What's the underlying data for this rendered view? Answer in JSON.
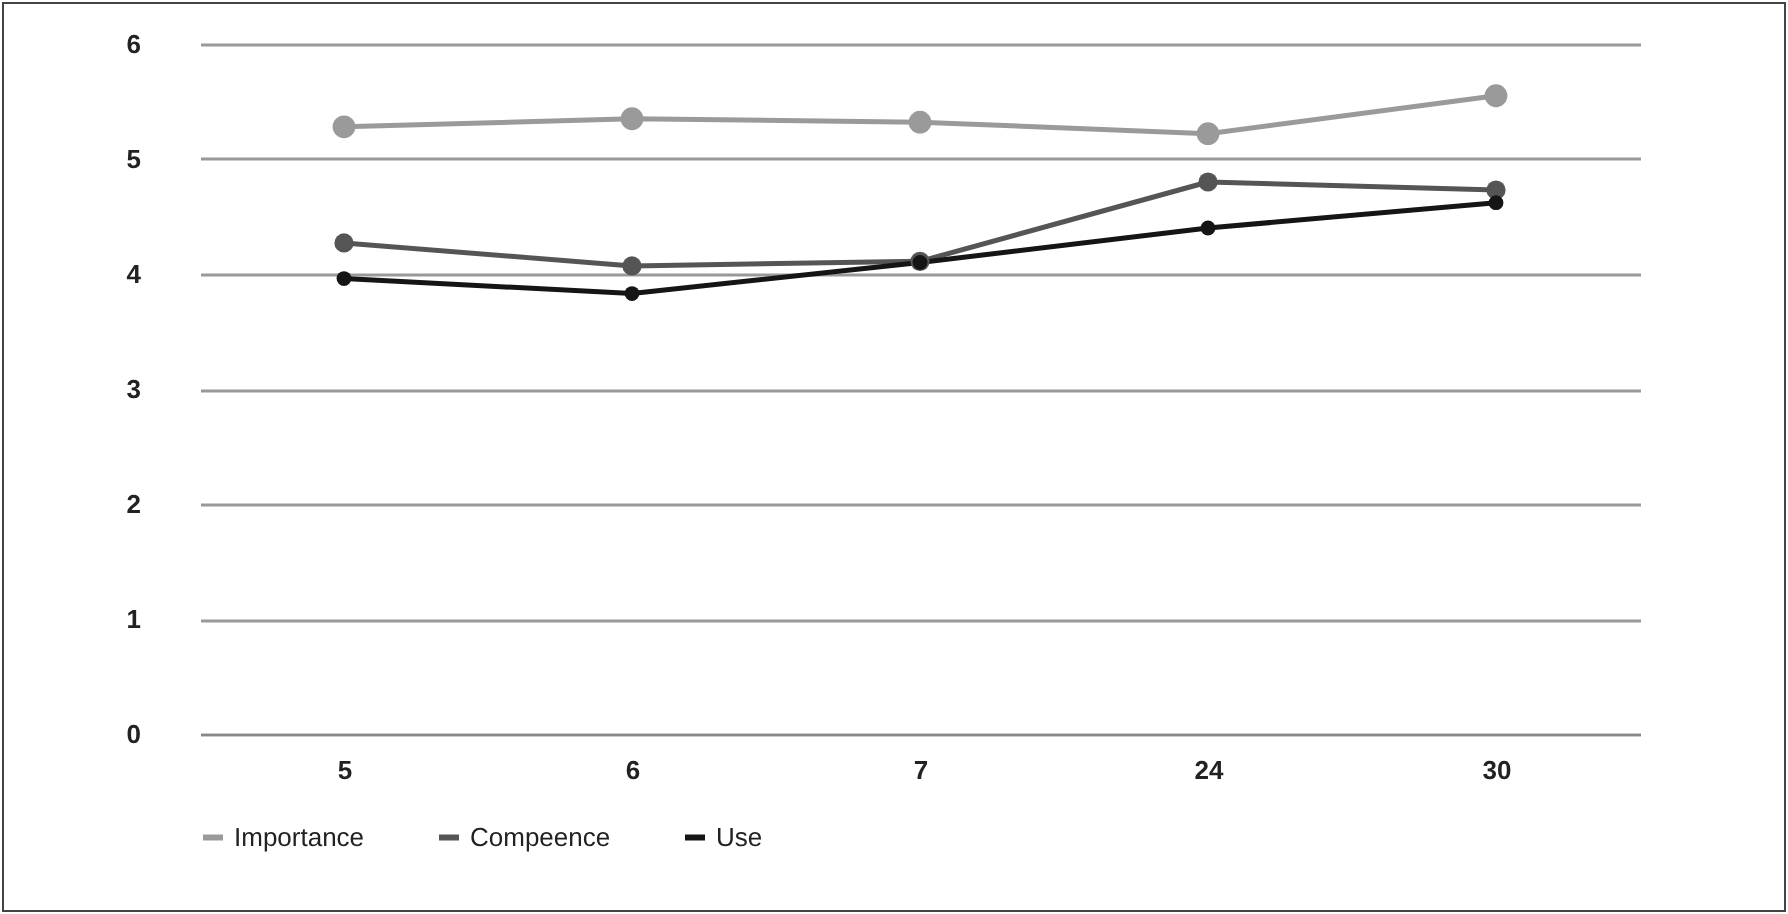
{
  "chart_data": {
    "type": "line",
    "categories": [
      "5",
      "6",
      "7",
      "24",
      "30"
    ],
    "series": [
      {
        "name": "Importance",
        "color": "#9a9a9a",
        "values": [
          5.28,
          5.35,
          5.32,
          5.22,
          5.55
        ]
      },
      {
        "name": "Compeence",
        "color": "#555555",
        "values": [
          4.27,
          4.07,
          4.11,
          4.8,
          4.73
        ]
      },
      {
        "name": "Use",
        "color": "#151515",
        "values": [
          3.96,
          3.83,
          4.1,
          4.4,
          4.62
        ]
      }
    ],
    "ylim": [
      0,
      6
    ],
    "yticks": [
      0,
      1,
      2,
      3,
      4,
      5,
      6
    ],
    "grid": "y",
    "legend": "bottom",
    "marker": "circle",
    "line_style": "solid"
  }
}
